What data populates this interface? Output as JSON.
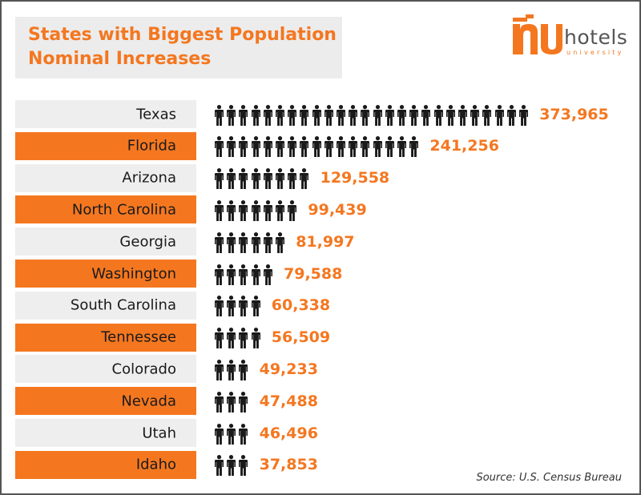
{
  "title_lines": [
    "States with Biggest Population",
    "Nominal Increases"
  ],
  "logo": {
    "word": "hotels",
    "sub": "university"
  },
  "source": "Source: U.S. Census Bureau",
  "colors": {
    "accent": "#f47720",
    "row_light": "#eeeeee",
    "icon": "#1a1a1a"
  },
  "icon": "person-icon",
  "chart_data": {
    "type": "bar",
    "categories": [
      "Texas",
      "Florida",
      "Arizona",
      "North Carolina",
      "Georgia",
      "Washington",
      "South Carolina",
      "Tennessee",
      "Colorado",
      "Nevada",
      "Utah",
      "Idaho"
    ],
    "values": [
      373965,
      241256,
      129558,
      99439,
      81997,
      79588,
      60338,
      56509,
      49233,
      47488,
      46496,
      37853
    ],
    "value_labels": [
      "373,965",
      "241,256",
      "129,558",
      "99,439",
      "81,997",
      "79,588",
      "60,338",
      "56,509",
      "49,233",
      "47,488",
      "46,496",
      "37,853"
    ],
    "icon_counts": [
      26,
      17,
      8,
      7,
      6,
      5,
      4,
      4,
      3,
      3,
      3,
      3
    ],
    "title": "States with Biggest Population Nominal Increases"
  }
}
